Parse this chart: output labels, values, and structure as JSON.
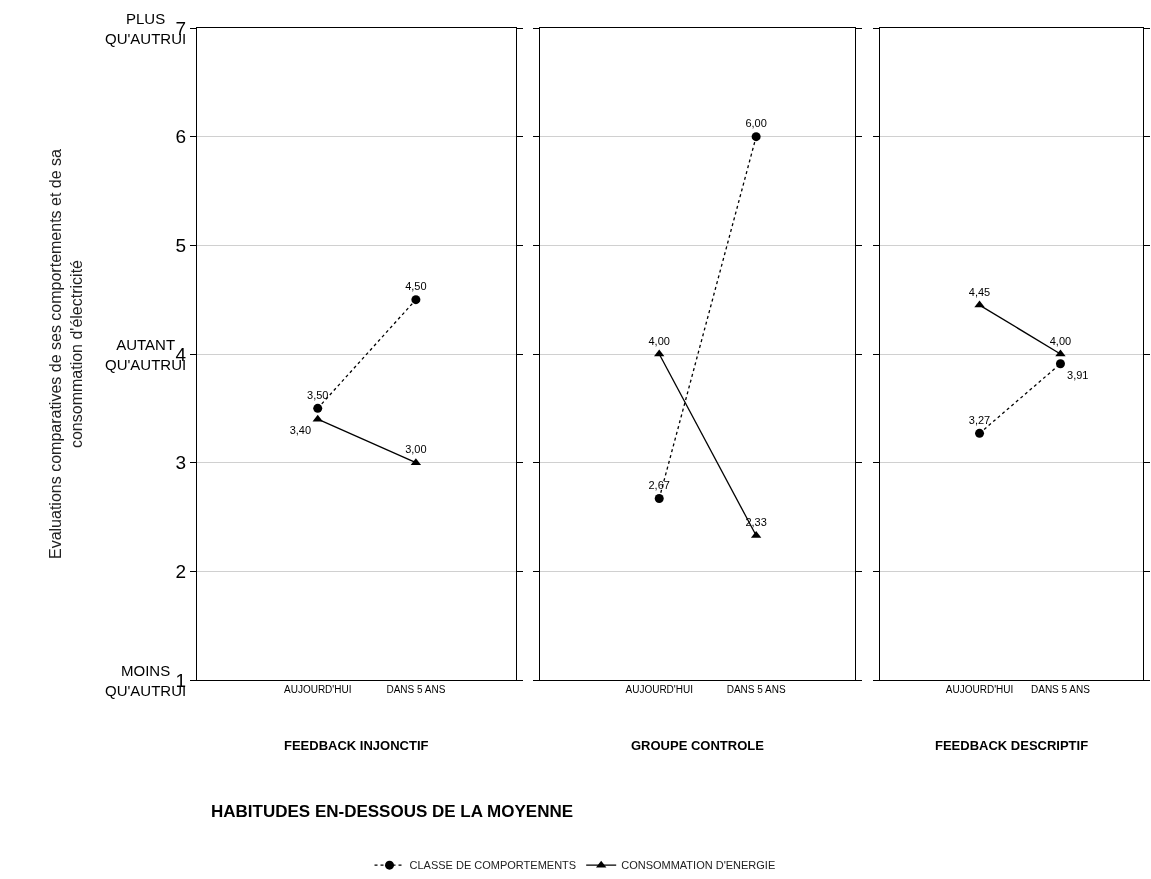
{
  "chart_data": [
    {
      "type": "line",
      "xlabel": "FEEDBACK INJONCTIF",
      "ylabel": "Evaluations comparatives de ses comportements et de sa consommation d'électricité",
      "categories": [
        "AUJOURD'HUI",
        "DANS 5 ANS"
      ],
      "ylim": [
        1,
        7
      ],
      "yticks": [
        1,
        2,
        3,
        4,
        5,
        6,
        7
      ],
      "grid": "y",
      "legend": "bottom",
      "annotations": [
        "PLUS QU'AUTRUI",
        "AUTANT QU'AUTRUI",
        "MOINS QU'AUTRUI",
        "HABITUDES EN-DESSOUS DE LA MOYENNE"
      ],
      "series": [
        {
          "name": "CLASSE DE COMPORTEMENTS",
          "color": "#000000",
          "marker": "circle",
          "line_style": "dotted",
          "values": [
            3.5,
            4.5
          ],
          "value_labels": [
            "3,50",
            "4,50"
          ]
        },
        {
          "name": "CONSOMMATION D'ENERGIE",
          "color": "#000000",
          "marker": "triangle",
          "line_style": "solid",
          "values": [
            3.4,
            3.0
          ],
          "value_labels": [
            "3,40",
            "3,00"
          ]
        }
      ]
    },
    {
      "type": "line",
      "xlabel": "GROUPE CONTROLE",
      "categories": [
        "AUJOURD'HUI",
        "DANS 5 ANS"
      ],
      "ylim": [
        1,
        7
      ],
      "yticks": [
        1,
        2,
        3,
        4,
        5,
        6,
        7
      ],
      "grid": "y",
      "tick_labels": "x",
      "series": [
        {
          "color": "#000000",
          "marker": "circle",
          "line_style": "dotted",
          "values": [
            2.67,
            6.0
          ],
          "value_labels": [
            "2,67",
            "6,00"
          ]
        },
        {
          "color": "#000000",
          "marker": "triangle",
          "line_style": "solid",
          "values": [
            4.0,
            2.33
          ],
          "value_labels": [
            "4,00",
            "2,33"
          ]
        }
      ]
    },
    {
      "type": "line",
      "xlabel": "FEEDBACK DESCRIPTIF",
      "categories": [
        "AUJOURD'HUI",
        "DANS 5 ANS"
      ],
      "ylim": [
        1,
        7
      ],
      "yticks": [
        1,
        2,
        3,
        4,
        5,
        6,
        7
      ],
      "grid": "y",
      "tick_labels": "x",
      "series": [
        {
          "color": "#000000",
          "marker": "circle",
          "line_style": "dotted",
          "values": [
            3.27,
            3.91
          ],
          "value_labels": [
            "3,27",
            "3,91"
          ]
        },
        {
          "color": "#000000",
          "marker": "triangle",
          "line_style": "solid",
          "values": [
            4.45,
            4.0
          ],
          "value_labels": [
            "4,45",
            "4,00"
          ]
        }
      ]
    }
  ]
}
